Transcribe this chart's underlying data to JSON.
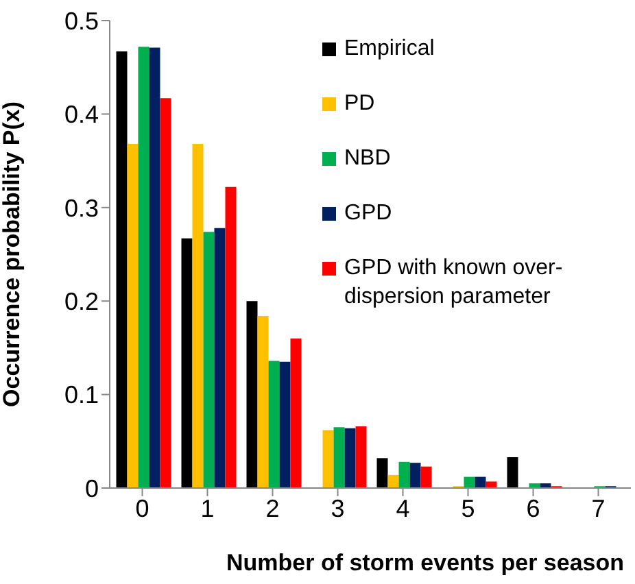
{
  "chart_data": {
    "type": "bar",
    "xlabel": "Number of storm events per season",
    "ylabel": "Occurrence probability P(x)",
    "categories": [
      "0",
      "1",
      "2",
      "3",
      "4",
      "5",
      "6",
      "7"
    ],
    "series": [
      {
        "name": "Empirical",
        "color": "#000000",
        "values": [
          0.467,
          0.267,
          0.2,
          0,
          0.032,
          0,
          0.033,
          0
        ]
      },
      {
        "name": "PD",
        "color": "#ffc000",
        "values": [
          0.368,
          0.368,
          0.184,
          0.062,
          0.014,
          0.002,
          0,
          0
        ]
      },
      {
        "name": "NBD",
        "color": "#00b050",
        "values": [
          0.472,
          0.274,
          0.136,
          0.065,
          0.028,
          0.012,
          0.005,
          0.002
        ]
      },
      {
        "name": "GPD",
        "color": "#002060",
        "values": [
          0.471,
          0.278,
          0.135,
          0.064,
          0.027,
          0.012,
          0.005,
          0.002
        ]
      },
      {
        "name": "GPD with known over-dispersion parameter",
        "color": "#ff0000",
        "values": [
          0.417,
          0.322,
          0.16,
          0.066,
          0.023,
          0.007,
          0.002,
          0
        ]
      }
    ],
    "ylim": [
      0,
      0.5
    ],
    "yticks": [
      0,
      0.1,
      0.2,
      0.3,
      0.4,
      0.5
    ],
    "legend": "top right"
  }
}
